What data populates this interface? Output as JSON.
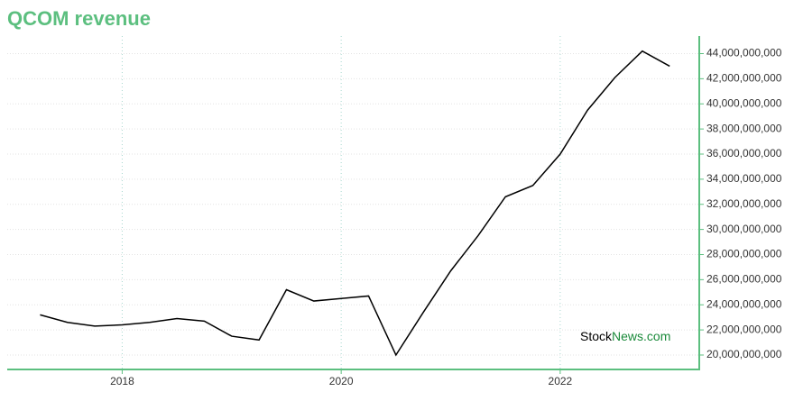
{
  "chart_data": {
    "type": "line",
    "title": "QCOM revenue",
    "x": [
      2017.25,
      2017.5,
      2017.75,
      2018.0,
      2018.25,
      2018.5,
      2018.75,
      2019.0,
      2019.25,
      2019.5,
      2019.75,
      2020.0,
      2020.25,
      2020.5,
      2020.75,
      2021.0,
      2021.25,
      2021.5,
      2021.75,
      2022.0,
      2022.25,
      2022.5,
      2022.75,
      2023.0
    ],
    "series": [
      {
        "name": "revenue",
        "color": "#000000",
        "values": [
          23200000000,
          22600000000,
          22300000000,
          22400000000,
          22600000000,
          22900000000,
          22700000000,
          21500000000,
          21200000000,
          25200000000,
          24300000000,
          24500000000,
          24700000000,
          20000000000,
          23400000000,
          26700000000,
          29500000000,
          32600000000,
          33500000000,
          36000000000,
          39500000000,
          42100000000,
          44200000000,
          43000000000
        ]
      }
    ],
    "xlim": [
      2016.95,
      2023.27
    ],
    "xticks": [
      2018,
      2020,
      2022
    ],
    "ylim": [
      18850000000,
      45400000000
    ],
    "yticks": [
      {
        "value": 20000000000,
        "label": "20,000,000,000"
      },
      {
        "value": 22000000000,
        "label": "22,000,000,000"
      },
      {
        "value": 24000000000,
        "label": "24,000,000,000"
      },
      {
        "value": 26000000000,
        "label": "26,000,000,000"
      },
      {
        "value": 28000000000,
        "label": "28,000,000,000"
      },
      {
        "value": 30000000000,
        "label": "30,000,000,000"
      },
      {
        "value": 32000000000,
        "label": "32,000,000,000"
      },
      {
        "value": 34000000000,
        "label": "34,000,000,000"
      },
      {
        "value": 36000000000,
        "label": "36,000,000,000"
      },
      {
        "value": 38000000000,
        "label": "38,000,000,000"
      },
      {
        "value": 40000000000,
        "label": "40,000,000,000"
      },
      {
        "value": 42000000000,
        "label": "42,000,000,000"
      },
      {
        "value": 44000000000,
        "label": "44,000,000,000"
      }
    ],
    "grid": true,
    "axis_color": "#5cbf7f",
    "watermark": [
      "Stock",
      "News.com"
    ]
  }
}
